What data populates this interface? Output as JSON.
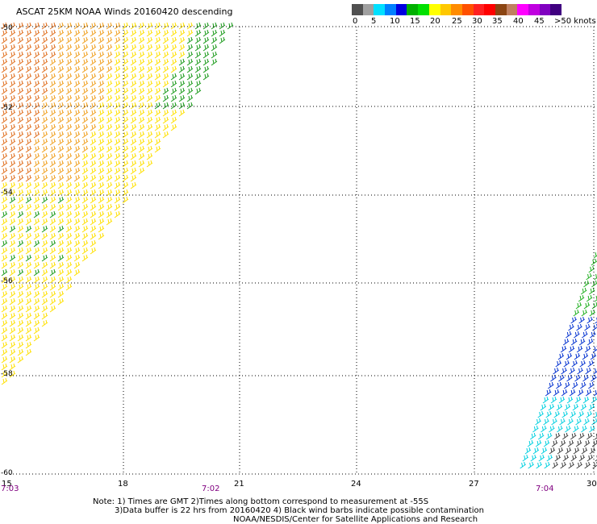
{
  "title": "ASCAT 25KM NOAA Winds 20160420 descending",
  "legend": {
    "colors": [
      "#505050",
      "#a0a0a0",
      "#00e0ff",
      "#0080ff",
      "#0000e0",
      "#00b000",
      "#00e000",
      "#ffff00",
      "#ffc800",
      "#ff8c00",
      "#ff5000",
      "#ff2020",
      "#ff0000",
      "#8b4513",
      "#c08060",
      "#ff00ff",
      "#c000e0",
      "#8000c0",
      "#400080"
    ],
    "labels": [
      "0",
      "5",
      "10",
      "15",
      "20",
      "25",
      "30",
      "35",
      "40",
      "45",
      ">50 knots"
    ]
  },
  "y_labels": [
    "-50",
    "-52",
    "-54",
    "-56",
    "-58",
    "-60"
  ],
  "x_labels": [
    "15",
    "18",
    "21",
    "24",
    "27",
    "30"
  ],
  "time_labels": [
    "7:03",
    "7:02",
    "7:04"
  ],
  "notes": [
    "Note: 1) Times are GMT 2)Times along bottom correspond to measurement at -55S",
    "3)Data buffer is 22 hrs from 20160420 4) Black wind barbs indicate possible contamination",
    "NOAA/NESDIS/Center for Satellite Applications and Research"
  ]
}
